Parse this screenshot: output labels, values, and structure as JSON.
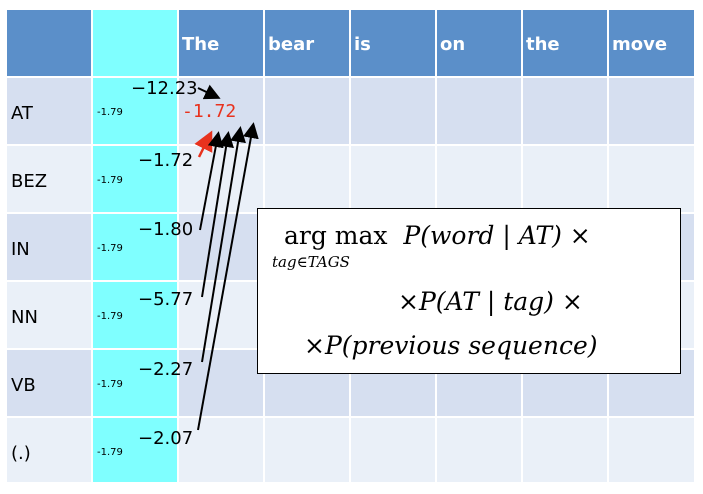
{
  "header": {
    "words": [
      "The",
      "bear",
      "is",
      "on",
      "the",
      "move"
    ]
  },
  "rows": [
    {
      "tag": "AT",
      "start": "-1.79",
      "prev": "−12.23"
    },
    {
      "tag": "BEZ",
      "start": "-1.79",
      "prev": "−1.72"
    },
    {
      "tag": "IN",
      "start": "-1.79",
      "prev": "−1.80"
    },
    {
      "tag": "NN",
      "start": "-1.79",
      "prev": "−5.77"
    },
    {
      "tag": "VB",
      "start": "-1.79",
      "prev": "−2.27"
    },
    {
      "tag": "(.)",
      "start": "-1.79",
      "prev": "−2.07"
    }
  ],
  "best": "-1.72",
  "formula": {
    "line1_op": "arg max",
    "line1_rest": "P(word | AT) ×",
    "subscript": "tag∈TAGS",
    "line2": "×P(AT | tag) ×",
    "line3": "×P(previous sequence)"
  },
  "colors": {
    "header": "#5b8fc9",
    "start_col": "#7fffff",
    "row_odd": "#d6dff0",
    "row_even": "#eaf0f8",
    "highlight": "#e8321e"
  }
}
